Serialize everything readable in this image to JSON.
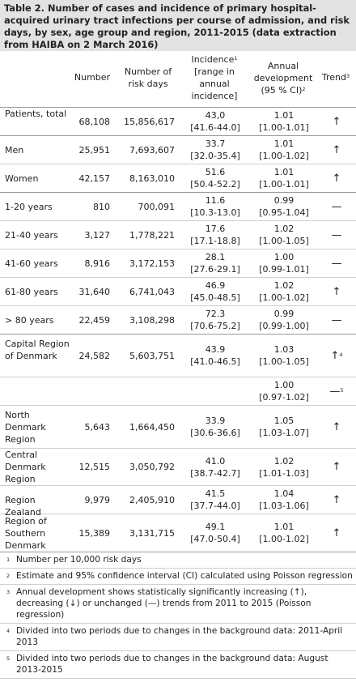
{
  "title": "Table 2. Number of cases and incidence of primary hospital-acquired urinary tract infections per course of admission, and risk days, by sex, age group and region, 2011-2015 (data extraction from HAIBA on 2 March 2016)",
  "headers": {
    "number": "Number",
    "risk_days": "Number of risk days",
    "incidence": "Incidence",
    "incidence_sup": "1",
    "incidence_sub": "[range in annual incidence]",
    "annual_dev": "Annual development",
    "annual_dev_ci": "(95 % CI)",
    "annual_dev_sup": "2",
    "trend": "Trend",
    "trend_sup": "3"
  },
  "rows": [
    {
      "label": "Patients, total",
      "number": "68,108",
      "risk_days": "15,856,617",
      "incidence": "43,0",
      "range": "[41.6-44.0]",
      "dev": "1.01",
      "ci": "[1.00-1.01]",
      "trend": "↑",
      "trend_sup": ""
    },
    {
      "label": "Men",
      "number": "25,951",
      "risk_days": "7,693,607",
      "incidence": "33.7",
      "range": "[32.0-35.4]",
      "dev": "1.01",
      "ci": "[1.00-1.02]",
      "trend": "↑",
      "trend_sup": ""
    },
    {
      "label": "Women",
      "number": "42,157",
      "risk_days": "8,163,010",
      "incidence": "51.6",
      "range": "[50.4-52.2]",
      "dev": "1.01",
      "ci": "[1.00-1.01]",
      "trend": "↑",
      "trend_sup": ""
    },
    {
      "label": "1-20 years",
      "number": "810",
      "risk_days": "700,091",
      "incidence": "11.6",
      "range": "[10.3-13.0]",
      "dev": "0.99",
      "ci": "[0.95-1.04]",
      "trend": "—",
      "trend_sup": ""
    },
    {
      "label": "21-40 years",
      "number": "3,127",
      "risk_days": "1,778,221",
      "incidence": "17.6",
      "range": "[17.1-18.8]",
      "dev": "1.02",
      "ci": "[1.00-1.05]",
      "trend": "—",
      "trend_sup": ""
    },
    {
      "label": "41-60 years",
      "number": "8,916",
      "risk_days": "3,172,153",
      "incidence": "28.1",
      "range": "[27.6-29.1]",
      "dev": "1.00",
      "ci": "[0.99-1.01]",
      "trend": "—",
      "trend_sup": ""
    },
    {
      "label": "61-80 years",
      "number": "31,640",
      "risk_days": "6,741,043",
      "incidence": "46.9",
      "range": "[45.0-48.5]",
      "dev": "1.02",
      "ci": "[1.00-1.02]",
      "trend": "↑",
      "trend_sup": ""
    },
    {
      "label": "> 80 years",
      "number": "22,459",
      "risk_days": "3,108,298",
      "incidence": "72.3",
      "range": "[70.6-75.2]",
      "dev": "0.99",
      "ci": "[0.99-1.00]",
      "trend": "—",
      "trend_sup": ""
    },
    {
      "label": "Capital Region of Denmark",
      "number": "24,582",
      "risk_days": "5,603,751",
      "incidence": "43.9",
      "range": "[41.0-46.5]",
      "dev": "1.03",
      "ci": "[1.00-1.05]",
      "trend": "↑",
      "trend_sup": "4"
    },
    {
      "label": "",
      "number": "",
      "risk_days": "",
      "incidence": "",
      "range": "",
      "dev": "1.00",
      "ci": "[0.97-1.02]",
      "trend": "—",
      "trend_sup": "5"
    },
    {
      "label": "North Denmark Region",
      "number": "5,643",
      "risk_days": "1,664,450",
      "incidence": "33.9",
      "range": "[30.6-36.6]",
      "dev": "1.05",
      "ci": "[1.03-1.07]",
      "trend": "↑",
      "trend_sup": ""
    },
    {
      "label": "Central Denmark Region",
      "number": "12,515",
      "risk_days": "3,050,792",
      "incidence": "41.0",
      "range": "[38.7-42.7]",
      "dev": "1.02",
      "ci": "[1.01-1.03]",
      "trend": "↑",
      "trend_sup": ""
    },
    {
      "label": "Region Zealand",
      "number": "9,979",
      "risk_days": "2,405,910",
      "incidence": "41.5",
      "range": "[37.7-44.0]",
      "dev": "1.04",
      "ci": "[1.03-1.06]",
      "trend": "↑",
      "trend_sup": ""
    },
    {
      "label": "Region of Southern Denmark",
      "number": "15,389",
      "risk_days": "3,131,715",
      "incidence": "49.1",
      "range": "[47.0-50.4]",
      "dev": "1.01",
      "ci": "[1.00-1.02]",
      "trend": "↑",
      "trend_sup": ""
    }
  ],
  "notes": [
    {
      "sup": "1",
      "text": "Number per 10,000 risk days"
    },
    {
      "sup": "2",
      "text": "Estimate and 95% confidence interval (CI) calculated using Poisson regression"
    },
    {
      "sup": "3",
      "text": "Annual development shows statistically significantly increasing (↑), decreasing (↓) or unchanged (—) trends from 2011 to 2015 (Poisson regression)"
    },
    {
      "sup": "4",
      "text": "Divided into two periods due to changes in the background data: 2011-April 2013"
    },
    {
      "sup": "5",
      "text": "Divided into two periods due to changes in the background data: August 2013-2015"
    }
  ]
}
